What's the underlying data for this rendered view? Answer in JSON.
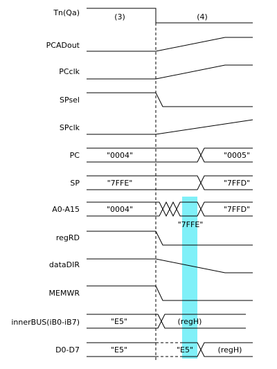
{
  "phases": [
    "(3)",
    "(4)"
  ],
  "signals": {
    "tn": "Tn(Qa)",
    "pcadout": "PCADout",
    "pcclk": "PCclk",
    "spsel": "SPsel",
    "spclk": "SPclk",
    "pc": "PC",
    "sp": "SP",
    "addr": "A0-A15",
    "regrd": "regRD",
    "datadir": "dataDIR",
    "memwr": "MEMWR",
    "innerbus": "innerBUS(iB0-iB7)",
    "data": "D0-D7"
  },
  "values": {
    "pc_before": "\"0004\"",
    "pc_after": "\"0005\"",
    "sp_before": "\"7FFE\"",
    "sp_after": "\"7FFD\"",
    "addr_before": "\"0004\"",
    "addr_mid": "\"7FFE\"",
    "addr_after": "\"7FFD\"",
    "bus_before": "\"E5\"",
    "bus_after": "(regH)",
    "data_before": "\"E5\"",
    "data_mid": "\"E5\"",
    "data_after": "(regH)"
  },
  "colors": {
    "highlight": "#7ff0f8"
  }
}
